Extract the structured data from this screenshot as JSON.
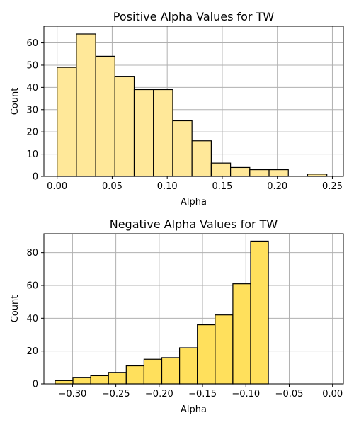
{
  "chart_data": [
    {
      "type": "bar",
      "title": "Positive Alpha Values for TW",
      "xlabel": "Alpha",
      "ylabel": "Count",
      "color": "#FFE899",
      "grid": true,
      "xlim": [
        -0.012,
        0.26
      ],
      "ylim": [
        0,
        67.5
      ],
      "xticks": [
        0.0,
        0.05,
        0.1,
        0.15,
        0.2,
        0.25
      ],
      "xtick_labels": [
        "0.00",
        "0.05",
        "0.10",
        "0.15",
        "0.20",
        "0.25"
      ],
      "yticks": [
        0,
        10,
        20,
        30,
        40,
        50,
        60
      ],
      "ytick_labels": [
        "0",
        "10",
        "20",
        "30",
        "40",
        "50",
        "60"
      ],
      "bins": [
        {
          "x0": 0.0,
          "x1": 0.0175,
          "count": 49
        },
        {
          "x0": 0.0175,
          "x1": 0.035,
          "count": 64
        },
        {
          "x0": 0.035,
          "x1": 0.0525,
          "count": 54
        },
        {
          "x0": 0.0525,
          "x1": 0.07,
          "count": 45
        },
        {
          "x0": 0.07,
          "x1": 0.0875,
          "count": 39
        },
        {
          "x0": 0.0875,
          "x1": 0.105,
          "count": 39
        },
        {
          "x0": 0.105,
          "x1": 0.1225,
          "count": 25
        },
        {
          "x0": 0.1225,
          "x1": 0.14,
          "count": 16
        },
        {
          "x0": 0.14,
          "x1": 0.1575,
          "count": 6
        },
        {
          "x0": 0.1575,
          "x1": 0.175,
          "count": 4
        },
        {
          "x0": 0.175,
          "x1": 0.1925,
          "count": 3
        },
        {
          "x0": 0.1925,
          "x1": 0.21,
          "count": 3
        },
        {
          "x0": 0.21,
          "x1": 0.2275,
          "count": 0
        },
        {
          "x0": 0.2275,
          "x1": 0.245,
          "count": 1
        }
      ]
    },
    {
      "type": "bar",
      "title": "Negative Alpha Values for TW",
      "xlabel": "Alpha",
      "ylabel": "Count",
      "color": "#FFE05C",
      "grid": true,
      "xlim": [
        -0.333,
        0.0125
      ],
      "ylim": [
        0,
        91.5
      ],
      "xticks": [
        -0.3,
        -0.25,
        -0.2,
        -0.15,
        -0.1,
        -0.05,
        0.0
      ],
      "xtick_labels": [
        "−0.30",
        "−0.25",
        "−0.20",
        "−0.15",
        "−0.10",
        "−0.05",
        "0.00"
      ],
      "yticks": [
        0,
        20,
        40,
        60,
        80
      ],
      "ytick_labels": [
        "0",
        "20",
        "40",
        "60",
        "80"
      ],
      "bins": [
        {
          "x0": -0.32,
          "x1": -0.2995,
          "count": 2
        },
        {
          "x0": -0.2995,
          "x1": -0.279,
          "count": 4
        },
        {
          "x0": -0.279,
          "x1": -0.2585,
          "count": 5
        },
        {
          "x0": -0.2585,
          "x1": -0.238,
          "count": 7
        },
        {
          "x0": -0.238,
          "x1": -0.2175,
          "count": 11
        },
        {
          "x0": -0.2175,
          "x1": -0.197,
          "count": 15
        },
        {
          "x0": -0.197,
          "x1": -0.1765,
          "count": 16
        },
        {
          "x0": -0.1765,
          "x1": -0.156,
          "count": 22
        },
        {
          "x0": -0.156,
          "x1": -0.1355,
          "count": 36
        },
        {
          "x0": -0.1355,
          "x1": -0.115,
          "count": 42
        },
        {
          "x0": -0.115,
          "x1": -0.0945,
          "count": 61
        },
        {
          "x0": -0.0945,
          "x1": -0.074,
          "count": 87
        }
      ]
    }
  ]
}
